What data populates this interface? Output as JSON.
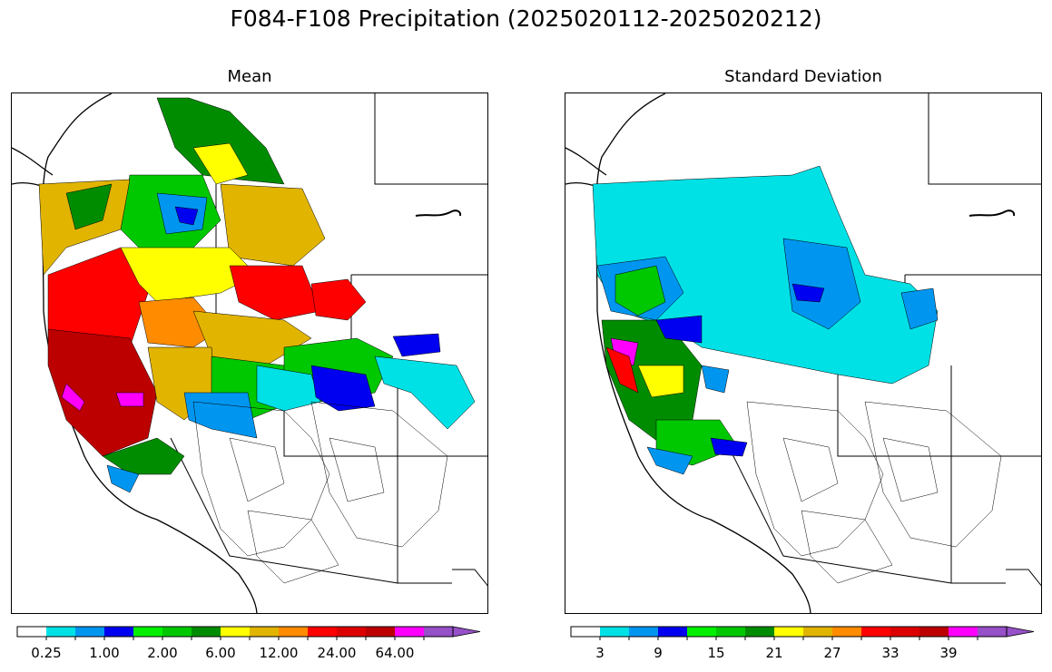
{
  "figure": {
    "suptitle": "F084-F108 Precipitation (2025020112-2025020212)"
  },
  "panels": [
    {
      "id": "mean",
      "title": "Mean",
      "colorbar": {
        "colors": [
          "#ffffff",
          "#00e1e6",
          "#0096f0",
          "#0000f0",
          "#00f000",
          "#00c800",
          "#008c00",
          "#ffff00",
          "#e1b400",
          "#ff8c00",
          "#ff0000",
          "#dc0000",
          "#bc0000",
          "#ff00ff",
          "#9650c8"
        ],
        "tick_labels": [
          "0.25",
          "1.00",
          "2.00",
          "6.00",
          "12.00",
          "24.00",
          "64.00"
        ],
        "extend": "max"
      }
    },
    {
      "id": "std",
      "title": "Standard Deviation",
      "colorbar": {
        "colors": [
          "#ffffff",
          "#00e1e6",
          "#0096f0",
          "#0000f0",
          "#00f000",
          "#00c800",
          "#008c00",
          "#ffff00",
          "#e1b400",
          "#ff8c00",
          "#ff0000",
          "#dc0000",
          "#bc0000",
          "#ff00ff",
          "#9650c8"
        ],
        "tick_labels": [
          "3",
          "9",
          "15",
          "21",
          "27",
          "33",
          "39"
        ],
        "extend": "max"
      }
    }
  ]
}
